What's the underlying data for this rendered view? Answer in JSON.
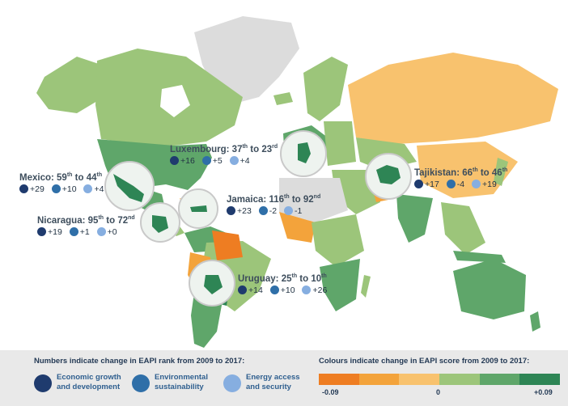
{
  "callouts": {
    "luxembourg": {
      "country": "Luxembourg",
      "from": "37",
      "from_sfx": "th",
      "to_word": "to",
      "to": "23",
      "to_sfx": "rd",
      "econ": "+16",
      "env": "+5",
      "energy": "+4"
    },
    "mexico": {
      "country": "Mexico",
      "from": "59",
      "from_sfx": "th",
      "to_word": "to",
      "to": "44",
      "to_sfx": "th",
      "econ": "+29",
      "env": "+10",
      "energy": "+4"
    },
    "jamaica": {
      "country": "Jamaica",
      "from": "116",
      "from_sfx": "th",
      "to_word": "to",
      "to": "92",
      "to_sfx": "nd",
      "econ": "+23",
      "env": "-2",
      "energy": "-1"
    },
    "nicaragua": {
      "country": "Nicaragua",
      "from": "95",
      "from_sfx": "th",
      "to_word": "to",
      "to": "72",
      "to_sfx": "nd",
      "econ": "+19",
      "env": "+1",
      "energy": "+0"
    },
    "tajikistan": {
      "country": "Tajikistan",
      "from": "66",
      "from_sfx": "th",
      "to_word": "to",
      "to": "46",
      "to_sfx": "th",
      "econ": "+17",
      "env": "-4",
      "energy": "+19"
    },
    "uruguay": {
      "country": "Uruguay",
      "from": "25",
      "from_sfx": "th",
      "to_word": "to",
      "to": "10",
      "to_sfx": "th",
      "econ": "+14",
      "env": "+10",
      "energy": "+26"
    }
  },
  "legend": {
    "rank_heading": "Numbers indicate change in EAPI rank from 2009 to 2017:",
    "score_heading": "Colours indicate change in EAPI score from 2009 to 2017:",
    "items": [
      {
        "line1": "Economic growth",
        "line2": "and development",
        "icon": "economic-growth-icon",
        "color": "#1f3b6e"
      },
      {
        "line1": "Environmental",
        "line2": "sustainability",
        "icon": "environment-icon",
        "color": "#2f6fa8"
      },
      {
        "line1": "Energy access",
        "line2": "and security",
        "icon": "energy-access-icon",
        "color": "#86aee0"
      }
    ],
    "scale_colors": [
      "#ee7d22",
      "#f3a33b",
      "#f8c26e",
      "#9cc57a",
      "#5fa66a",
      "#2e8555"
    ],
    "scale_ticks": {
      "min": "-0.09",
      "mid": "0",
      "max": "+0.09"
    }
  },
  "colors": {
    "ocean": "#ffffff",
    "no_data": "#dcdcdc",
    "outline": "#ffffff"
  }
}
